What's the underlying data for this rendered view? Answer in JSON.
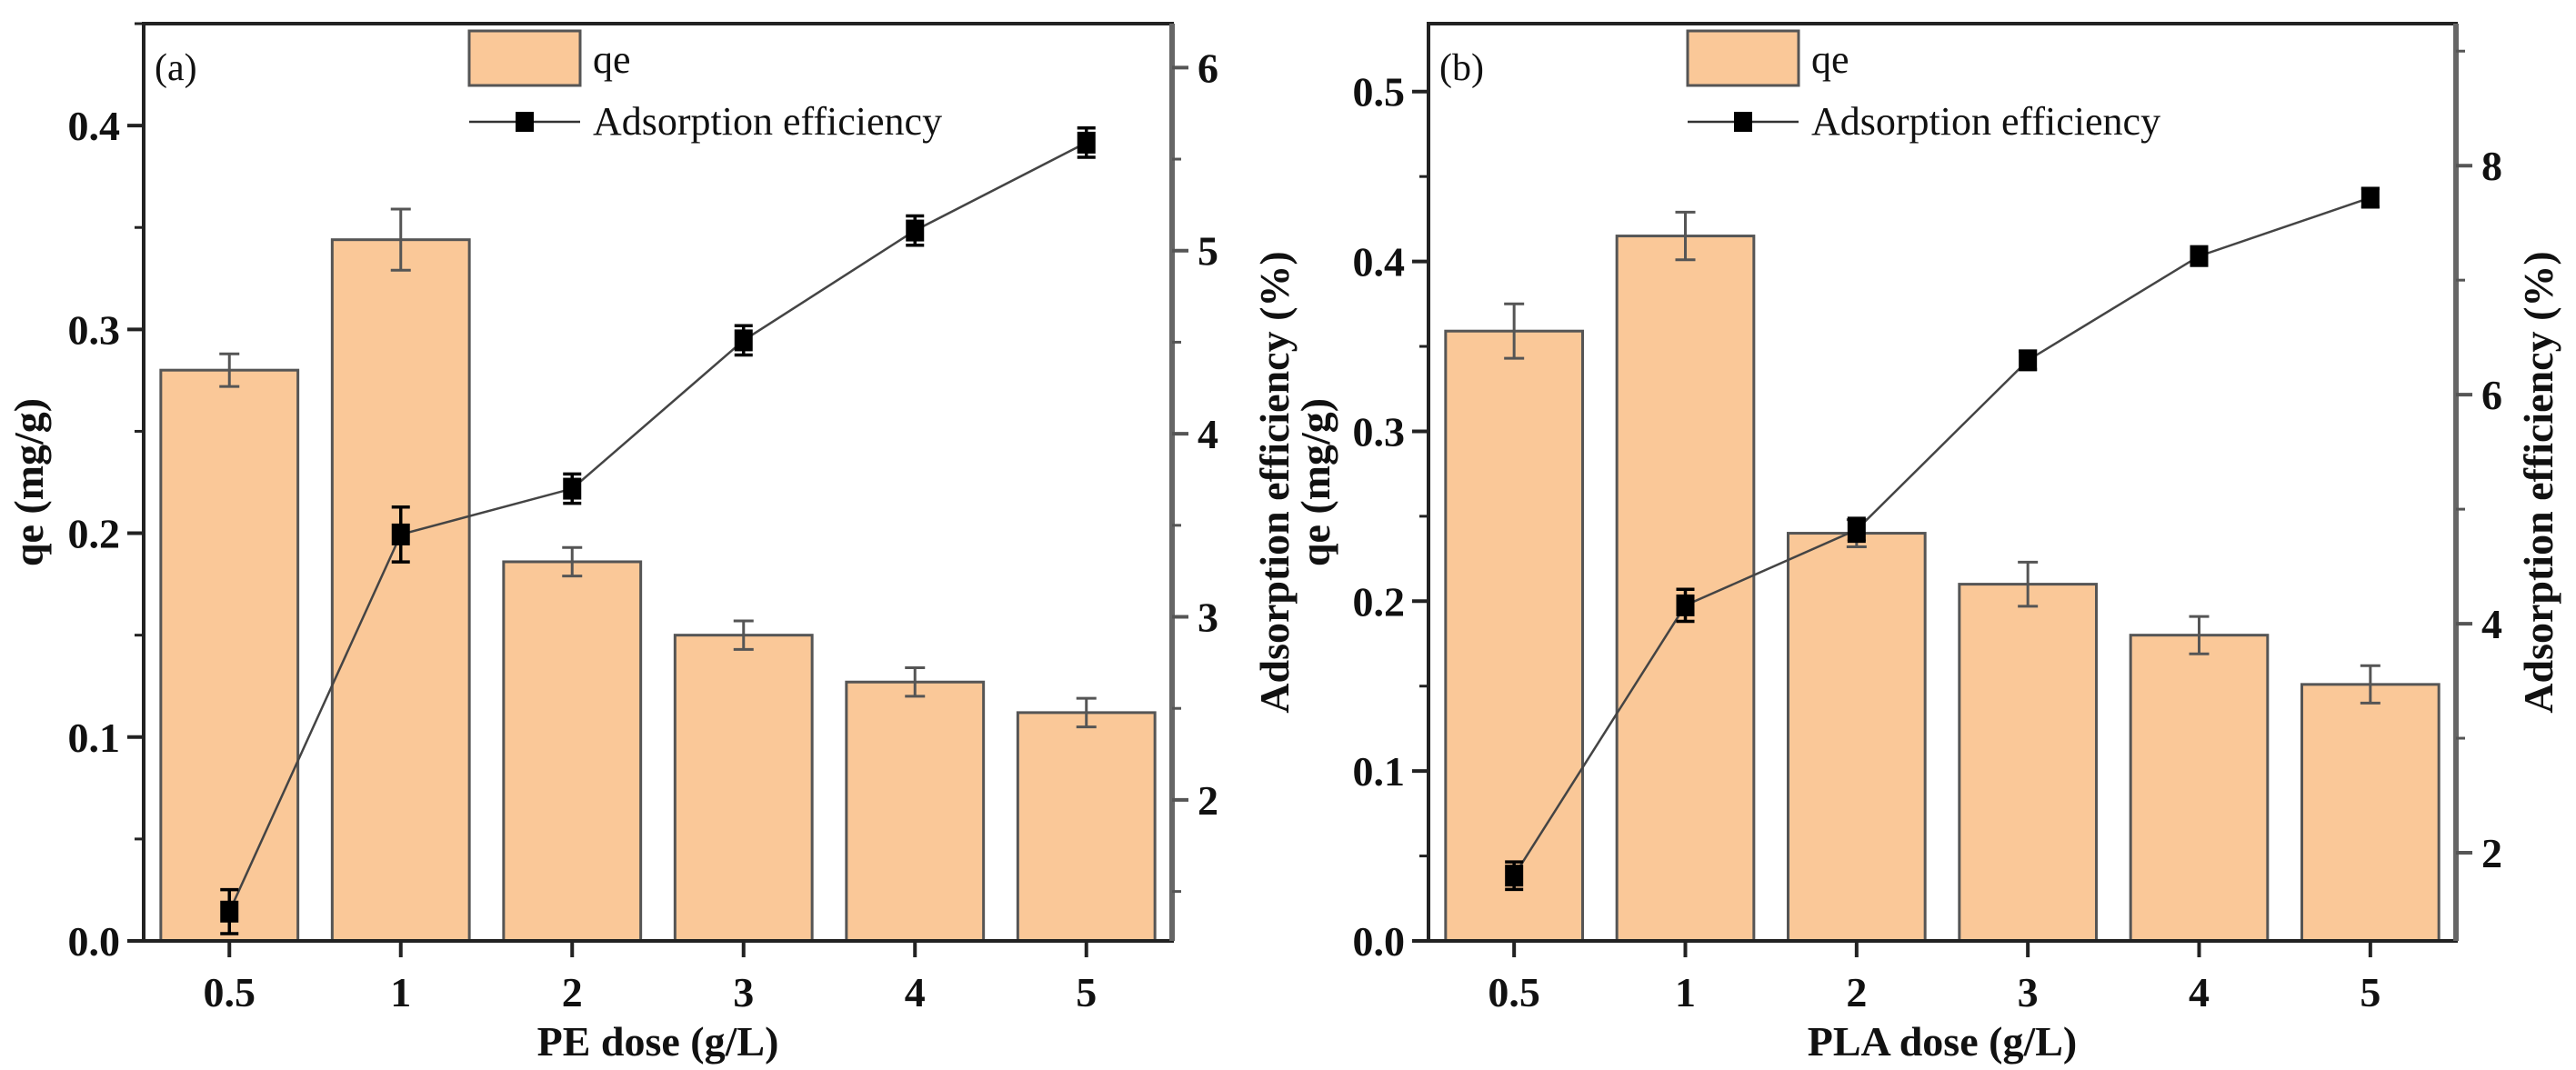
{
  "chart_data": [
    {
      "type": "bar+line",
      "panel_label": "(a)",
      "categories": [
        "0.5",
        "1",
        "2",
        "3",
        "4",
        "5"
      ],
      "xlabel": "PE dose (g/L)",
      "ylabel": "qe (mg/g)",
      "ylabel_right": "Adsorption efficiency (%)",
      "ylim": [
        0,
        0.45
      ],
      "ylim_right": [
        1.23,
        6.24
      ],
      "yticks": [
        0.0,
        0.1,
        0.2,
        0.3,
        0.4
      ],
      "yticks_right": [
        2,
        3,
        4,
        5,
        6
      ],
      "grid": false,
      "legend_position": "top-center",
      "series": [
        {
          "name": "qe",
          "type": "bar",
          "axis": "left",
          "values": [
            0.28,
            0.344,
            0.186,
            0.15,
            0.127,
            0.112
          ],
          "errors": [
            0.008,
            0.015,
            0.007,
            0.007,
            0.007,
            0.007
          ],
          "color": "#FAC898"
        },
        {
          "name": "Adsorption efficiency",
          "type": "line",
          "axis": "right",
          "marker": "square",
          "values": [
            1.39,
            3.45,
            3.7,
            4.51,
            5.11,
            5.59
          ],
          "errors": [
            0.12,
            0.15,
            0.08,
            0.08,
            0.08,
            0.08
          ],
          "color": "#000000"
        }
      ]
    },
    {
      "type": "bar+line",
      "panel_label": "(b)",
      "categories": [
        "0.5",
        "1",
        "2",
        "3",
        "4",
        "5"
      ],
      "xlabel": "PLA dose (g/L)",
      "ylabel": "qe (mg/g)",
      "ylabel_right": "Adsorption efficiency (%)",
      "ylim": [
        0,
        0.54
      ],
      "ylim_right": [
        1.23,
        9.24
      ],
      "yticks": [
        0.0,
        0.1,
        0.2,
        0.3,
        0.4,
        0.5
      ],
      "yticks_right": [
        2,
        4,
        6,
        8
      ],
      "grid": false,
      "legend_position": "top-center",
      "series": [
        {
          "name": "qe",
          "type": "bar",
          "axis": "left",
          "values": [
            0.359,
            0.415,
            0.24,
            0.21,
            0.18,
            0.151
          ],
          "errors": [
            0.016,
            0.014,
            0.008,
            0.013,
            0.011,
            0.011
          ],
          "color": "#FAC898"
        },
        {
          "name": "Adsorption efficiency",
          "type": "line",
          "axis": "right",
          "marker": "square",
          "values": [
            1.8,
            4.16,
            4.82,
            6.3,
            7.21,
            7.72
          ],
          "errors": [
            0.12,
            0.14,
            0.1,
            0.08,
            0.08,
            0.08
          ],
          "color": "#000000"
        }
      ]
    }
  ]
}
